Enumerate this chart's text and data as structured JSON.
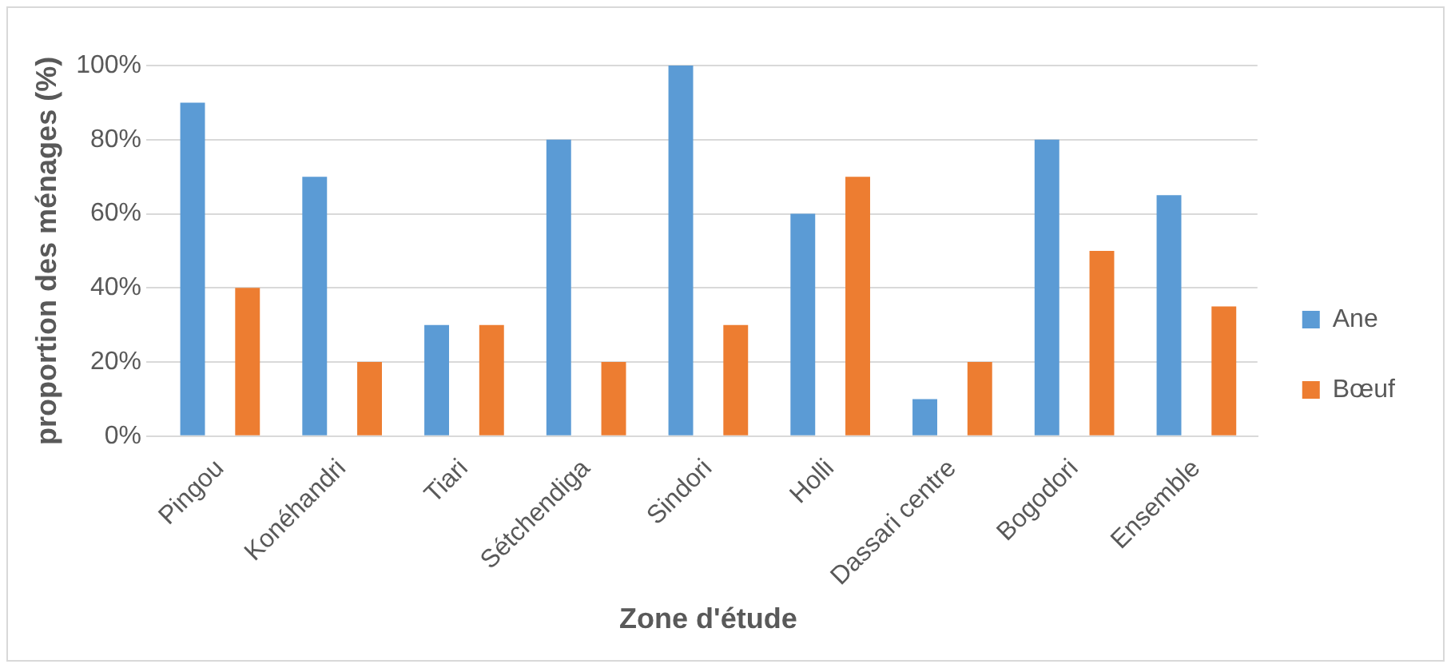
{
  "chart_data": {
    "type": "bar",
    "xlabel": "Zone d'étude",
    "ylabel": "proportion des ménages (%)",
    "categories": [
      "Pingou",
      "Konéhandri",
      "Tiari",
      "Sétchendiga",
      "Sindori",
      "Holli",
      "Dassari centre",
      "Bogodori",
      "Ensemble"
    ],
    "series": [
      {
        "name": "Ane",
        "color": "#5b9bd5",
        "values": [
          90,
          70,
          30,
          80,
          100,
          60,
          10,
          80,
          65
        ]
      },
      {
        "name": "Bœuf",
        "color": "#ed7d31",
        "values": [
          40,
          20,
          30,
          20,
          30,
          70,
          20,
          50,
          35
        ]
      }
    ],
    "ylim": [
      0,
      100
    ],
    "yticks": [
      {
        "value": 0,
        "label": "0%"
      },
      {
        "value": 20,
        "label": "20%"
      },
      {
        "value": 40,
        "label": "40%"
      },
      {
        "value": 60,
        "label": "60%"
      },
      {
        "value": 80,
        "label": "80%"
      },
      {
        "value": 100,
        "label": "100%"
      }
    ],
    "grid": "y",
    "legend": "right"
  }
}
